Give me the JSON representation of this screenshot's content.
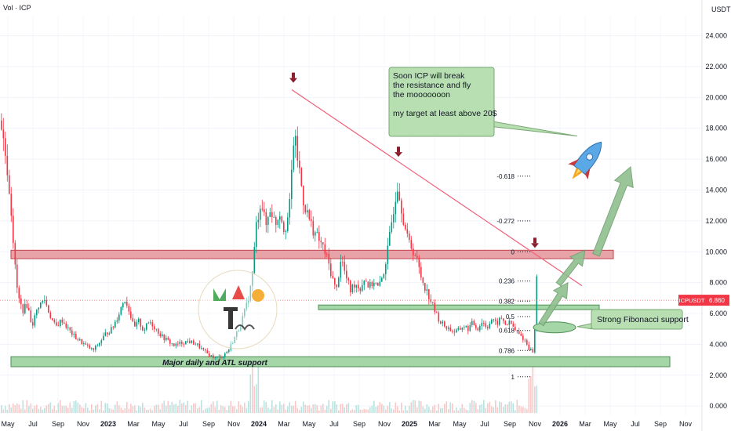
{
  "header": {
    "vol_label": "Vol · ICP",
    "currency": "USDT"
  },
  "price_tag": {
    "symbol": "ICPUSDT",
    "value": "6.860",
    "color": "#f23645",
    "price": 6.86
  },
  "colors": {
    "up": "#089981",
    "down": "#f23645",
    "resistance_fill": "#e8a3a8",
    "support_fill": "#a5d6a7",
    "trendline": "#f0607a",
    "arrow_green": "#8fbf8f",
    "marker": "#8b1e2d"
  },
  "chart_data": {
    "type": "candlestick",
    "title": "",
    "y_axis": {
      "position": "right",
      "ticks": [
        "0.000",
        "2.000",
        "4.000",
        "6.000",
        "8.000",
        "10.000",
        "12.000",
        "14.000",
        "16.000",
        "18.000",
        "20.000",
        "22.000",
        "24.000"
      ],
      "ylim": [
        -0.6,
        25.3
      ]
    },
    "x_axis": {
      "labels": [
        "May",
        "Jul",
        "Sep",
        "Nov",
        "2023",
        "Mar",
        "May",
        "Jul",
        "Sep",
        "Nov",
        "2024",
        "Mar",
        "May",
        "Jul",
        "Sep",
        "Nov",
        "2025",
        "Mar",
        "May",
        "Jul",
        "Sep",
        "Nov",
        "2026",
        "Mar",
        "May",
        "Jul",
        "Sep",
        "Nov"
      ],
      "bold": [
        "2023",
        "2024",
        "2025",
        "2026"
      ]
    },
    "price_anchors": [
      [
        0,
        18.5
      ],
      [
        8,
        15.6
      ],
      [
        14,
        12.4
      ],
      [
        18,
        9.2
      ],
      [
        22,
        7.1
      ],
      [
        28,
        6.2
      ],
      [
        34,
        6.6
      ],
      [
        40,
        5.2
      ],
      [
        48,
        6.5
      ],
      [
        56,
        6.9
      ],
      [
        62,
        6.0
      ],
      [
        70,
        5.1
      ],
      [
        78,
        5.6
      ],
      [
        86,
        5.0
      ],
      [
        94,
        4.5
      ],
      [
        104,
        4.1
      ],
      [
        112,
        3.8
      ],
      [
        118,
        3.6
      ],
      [
        126,
        4.1
      ],
      [
        134,
        4.7
      ],
      [
        142,
        5.0
      ],
      [
        150,
        5.9
      ],
      [
        158,
        7.0
      ],
      [
        164,
        6.2
      ],
      [
        170,
        5.0
      ],
      [
        176,
        5.5
      ],
      [
        182,
        4.9
      ],
      [
        190,
        5.5
      ],
      [
        198,
        5.0
      ],
      [
        206,
        4.5
      ],
      [
        214,
        4.2
      ],
      [
        222,
        3.9
      ],
      [
        230,
        4.1
      ],
      [
        240,
        4.2
      ],
      [
        250,
        4.0
      ],
      [
        258,
        3.6
      ],
      [
        266,
        3.3
      ],
      [
        274,
        3.1
      ],
      [
        282,
        3.2
      ],
      [
        290,
        3.6
      ],
      [
        298,
        4.4
      ],
      [
        306,
        5.3
      ],
      [
        314,
        6.6
      ],
      [
        320,
        8.0
      ],
      [
        326,
        11.7
      ],
      [
        332,
        13.4
      ],
      [
        338,
        11.6
      ],
      [
        344,
        12.9
      ],
      [
        350,
        11.8
      ],
      [
        356,
        12.6
      ],
      [
        362,
        11.4
      ],
      [
        368,
        12.6
      ],
      [
        374,
        17.6
      ],
      [
        380,
        15.6
      ],
      [
        386,
        13.3
      ],
      [
        392,
        12.3
      ],
      [
        398,
        11.5
      ],
      [
        404,
        10.9
      ],
      [
        410,
        10.4
      ],
      [
        416,
        9.6
      ],
      [
        422,
        8.5
      ],
      [
        428,
        7.4
      ],
      [
        434,
        9.7
      ],
      [
        440,
        8.4
      ],
      [
        446,
        7.5
      ],
      [
        452,
        8.0
      ],
      [
        458,
        7.6
      ],
      [
        464,
        8.3
      ],
      [
        470,
        7.7
      ],
      [
        476,
        8.1
      ],
      [
        482,
        7.6
      ],
      [
        488,
        8.6
      ],
      [
        494,
        10.2
      ],
      [
        500,
        12.5
      ],
      [
        506,
        14.4
      ],
      [
        512,
        12.6
      ],
      [
        518,
        10.9
      ],
      [
        524,
        10.3
      ],
      [
        530,
        9.6
      ],
      [
        536,
        8.4
      ],
      [
        542,
        7.6
      ],
      [
        548,
        6.9
      ],
      [
        554,
        6.1
      ],
      [
        560,
        5.5
      ],
      [
        566,
        5.2
      ],
      [
        572,
        5.0
      ],
      [
        578,
        4.8
      ],
      [
        584,
        4.9
      ],
      [
        590,
        5.2
      ],
      [
        596,
        5.0
      ],
      [
        602,
        5.4
      ],
      [
        608,
        5.0
      ],
      [
        614,
        5.5
      ],
      [
        620,
        5.1
      ],
      [
        626,
        5.6
      ],
      [
        632,
        5.3
      ],
      [
        638,
        5.7
      ],
      [
        644,
        5.3
      ],
      [
        650,
        5.4
      ],
      [
        656,
        4.9
      ],
      [
        662,
        4.6
      ],
      [
        668,
        4.3
      ],
      [
        674,
        3.7
      ],
      [
        680,
        3.5
      ],
      [
        684,
        9.1
      ]
    ],
    "levels": {
      "resistance_zone": {
        "from_x": 14,
        "to_x": 782,
        "top": 10.1,
        "bottom": 9.55
      },
      "mid_support": {
        "from_x": 406,
        "to_x": 764,
        "top": 6.55,
        "bottom": 6.25
      },
      "atl_support": {
        "from_x": 14,
        "to_x": 854,
        "top": 3.2,
        "bottom": 2.55,
        "label": "Major daily and ATL support"
      }
    },
    "trendline": {
      "x1": 372,
      "y1": 20.5,
      "x2": 742,
      "y2": 7.8
    },
    "peak_markers": [
      {
        "x": 374,
        "value": 20.9
      },
      {
        "x": 508,
        "value": 16.1
      },
      {
        "x": 682,
        "value": 10.2
      }
    ],
    "fibonacci": [
      {
        "label": "-0.618",
        "value": 14.9
      },
      {
        "label": "-0.272",
        "value": 12.0
      },
      {
        "label": "0",
        "value": 10.0
      },
      {
        "label": "0.236",
        "value": 8.1
      },
      {
        "label": "0.382",
        "value": 6.8
      },
      {
        "label": "0.5",
        "value": 5.8
      },
      {
        "label": "0.618",
        "value": 4.9
      },
      {
        "label": "0.786",
        "value": 3.6
      },
      {
        "label": "1",
        "value": 1.9
      }
    ],
    "annotations": {
      "target_note": [
        "Soon ICP will break",
        "the resistance and fly",
        "the mooooooon",
        "",
        "my target at least above 20$"
      ],
      "fib_note": "Strong Fibonacci support"
    }
  }
}
